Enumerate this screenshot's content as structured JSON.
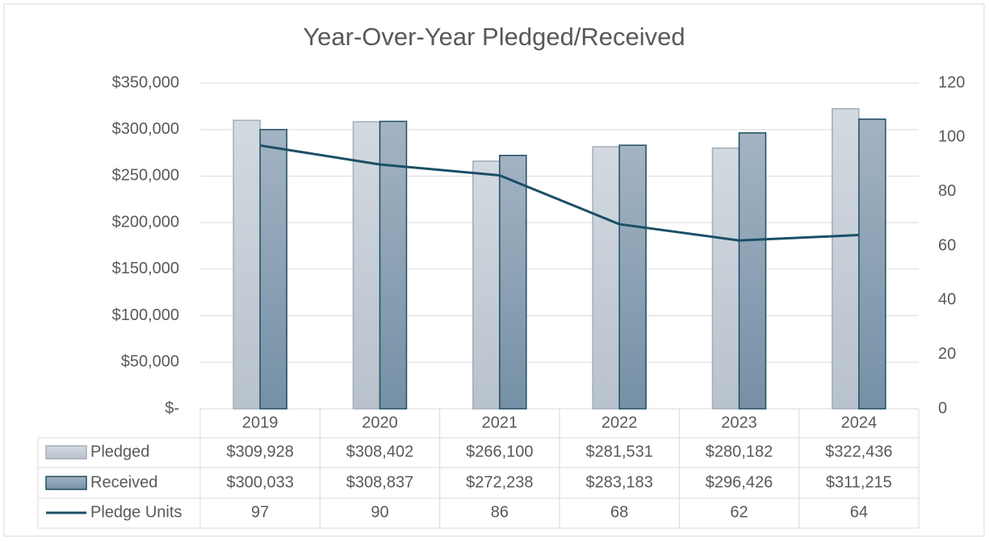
{
  "chart_data": {
    "type": "bar",
    "title": "Year-Over-Year Pledged/Received",
    "categories": [
      "2019",
      "2020",
      "2021",
      "2022",
      "2023",
      "2024"
    ],
    "series": [
      {
        "name": "Pledged",
        "color": "#c9d0d9",
        "values": [
          309928,
          308402,
          266100,
          281531,
          280182,
          322436
        ],
        "value_labels": [
          "$309,928",
          "$308,402",
          "$266,100",
          "$281,531",
          "$280,182",
          "$322,436"
        ]
      },
      {
        "name": "Received",
        "color": "#8aa0b4",
        "values": [
          300033,
          308837,
          272238,
          283183,
          296426,
          311215
        ],
        "value_labels": [
          "$300,033",
          "$308,837",
          "$272,238",
          "$283,183",
          "$296,426",
          "$311,215"
        ]
      },
      {
        "name": "Pledge Units",
        "type": "line",
        "axis": "y2",
        "color": "#1b4f66",
        "values": [
          97,
          90,
          86,
          68,
          62,
          64
        ]
      }
    ],
    "ylim": [
      0,
      350000
    ],
    "yticks": [
      {
        "value": 0,
        "label": "$-"
      },
      {
        "value": 50000,
        "label": "$50,000"
      },
      {
        "value": 100000,
        "label": "$100,000"
      },
      {
        "value": 150000,
        "label": "$150,000"
      },
      {
        "value": 200000,
        "label": "$200,000"
      },
      {
        "value": 250000,
        "label": "$250,000"
      },
      {
        "value": 300000,
        "label": "$300,000"
      },
      {
        "value": 350000,
        "label": "$350,000"
      }
    ],
    "y2lim": [
      0,
      120
    ],
    "y2ticks": [
      0,
      20,
      40,
      60,
      80,
      100,
      120
    ],
    "grid": true
  }
}
